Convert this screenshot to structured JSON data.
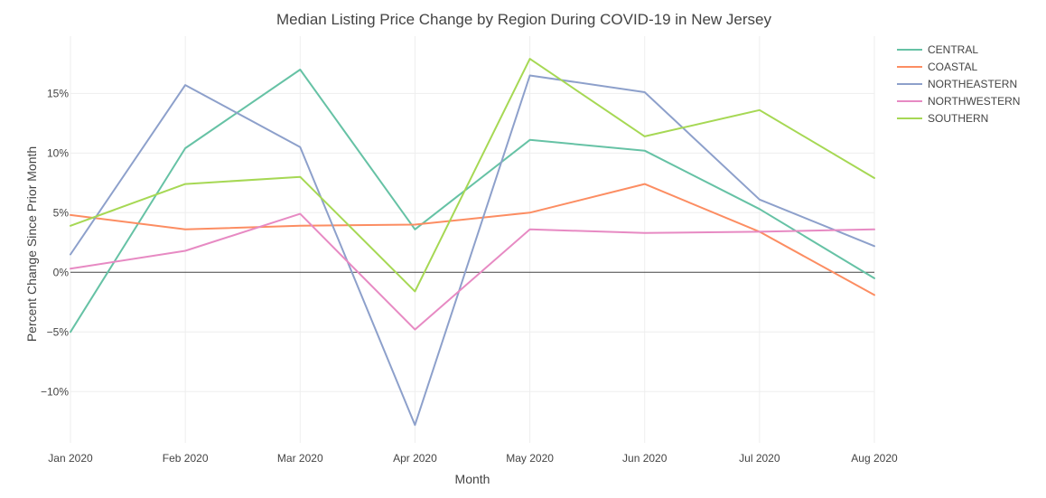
{
  "chart_data": {
    "type": "line",
    "title": "Median Listing Price Change by Region During COVID-19 in New Jersey",
    "xlabel": "Month",
    "ylabel": "Percent Change Since Prior Month",
    "categories": [
      "Jan 2020",
      "Feb 2020",
      "Mar 2020",
      "Apr 2020",
      "May 2020",
      "Jun 2020",
      "Jul 2020",
      "Aug 2020"
    ],
    "ylim": [
      -14.3,
      19.8
    ],
    "yticks": [
      -10,
      -5,
      0,
      5,
      10,
      15
    ],
    "ytick_labels": [
      "−10%",
      "−5%",
      "0%",
      "5%",
      "10%",
      "15%"
    ],
    "grid": true,
    "legend_position": "top-right",
    "series": [
      {
        "name": "CENTRAL",
        "color": "#66c2a5",
        "values": [
          -5.0,
          10.4,
          17.0,
          3.6,
          11.1,
          10.2,
          5.3,
          -0.5
        ]
      },
      {
        "name": "COASTAL",
        "color": "#fc8d62",
        "values": [
          4.8,
          3.6,
          3.9,
          4.0,
          5.0,
          7.4,
          3.4,
          -1.9
        ]
      },
      {
        "name": "NORTHEASTERN",
        "color": "#8da0cb",
        "values": [
          1.5,
          15.7,
          10.5,
          -12.8,
          16.5,
          15.1,
          6.1,
          2.2
        ]
      },
      {
        "name": "NORTHWESTERN",
        "color": "#e78ac3",
        "values": [
          0.3,
          1.8,
          4.9,
          -4.8,
          3.6,
          3.3,
          3.4,
          3.6
        ]
      },
      {
        "name": "SOUTHERN",
        "color": "#a6d854",
        "values": [
          3.9,
          7.4,
          8.0,
          -1.6,
          17.9,
          11.4,
          13.6,
          7.9
        ]
      }
    ]
  }
}
